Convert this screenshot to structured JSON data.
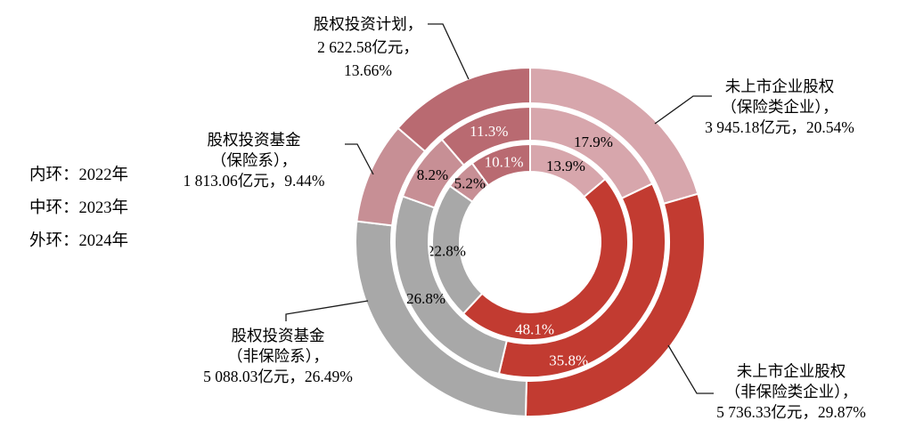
{
  "legend": {
    "inner": "内环：2022年",
    "middle": "中环：2023年",
    "outer": "外环：2024年"
  },
  "chart_data": {
    "type": "pie",
    "subtype": "nested-donut-3-rings",
    "start_angle_deg": 0,
    "direction": "clockwise",
    "unit": "亿元",
    "categories": [
      {
        "name": "未上市企业股权（保险类企业）",
        "color": "#d7a6ac",
        "label_color": "#000000"
      },
      {
        "name": "未上市企业股权（非保险类企业）",
        "color": "#c23b31",
        "label_color": "#ffffff"
      },
      {
        "name": "股权投资基金（非保险系）",
        "color": "#a8a8a8",
        "label_color": "#000000"
      },
      {
        "name": "股权投资基金（保险系）",
        "color": "#c78f95",
        "label_color": "#000000"
      },
      {
        "name": "股权投资计划",
        "color": "#b96a71",
        "label_color": "#ffffff"
      }
    ],
    "rings": [
      {
        "position": "内环",
        "year": "2022年",
        "values": [
          13.9,
          48.1,
          22.8,
          5.2,
          10.1
        ],
        "labels_shown": true
      },
      {
        "position": "中环",
        "year": "2023年",
        "values": [
          17.9,
          35.8,
          26.8,
          8.2,
          11.3
        ],
        "labels_shown": true
      },
      {
        "position": "外环",
        "year": "2024年",
        "values": [
          20.54,
          29.87,
          26.49,
          9.44,
          13.66
        ],
        "labels_shown": false
      }
    ],
    "callouts": [
      {
        "category": "股权投资计划",
        "amount": "2 622.58",
        "percent": "13.66%",
        "lines": [
          "股权投资计划，",
          "2 622.58亿元，",
          "13.66%"
        ]
      },
      {
        "category": "未上市企业股权（保险类企业）",
        "amount": "3 945.18",
        "percent": "20.54%",
        "lines": [
          "未上市企业股权",
          "（保险类企业），",
          "3 945.18亿元，20.54%"
        ]
      },
      {
        "category": "股权投资基金（保险系）",
        "amount": "1 813.06",
        "percent": "9.44%",
        "lines": [
          "股权投资基金",
          "（保险系），",
          "1 813.06亿元，9.44%"
        ]
      },
      {
        "category": "股权投资基金（非保险系）",
        "amount": "5 088.03",
        "percent": "26.49%",
        "lines": [
          "股权投资基金",
          "（非保险系），",
          "5 088.03亿元，26.49%"
        ]
      },
      {
        "category": "未上市企业股权（非保险类企业）",
        "amount": "5 736.33",
        "percent": "29.87%",
        "lines": [
          "未上市企业股权",
          "（非保险类企业），",
          "5 736.33亿元，29.87%"
        ]
      }
    ]
  }
}
